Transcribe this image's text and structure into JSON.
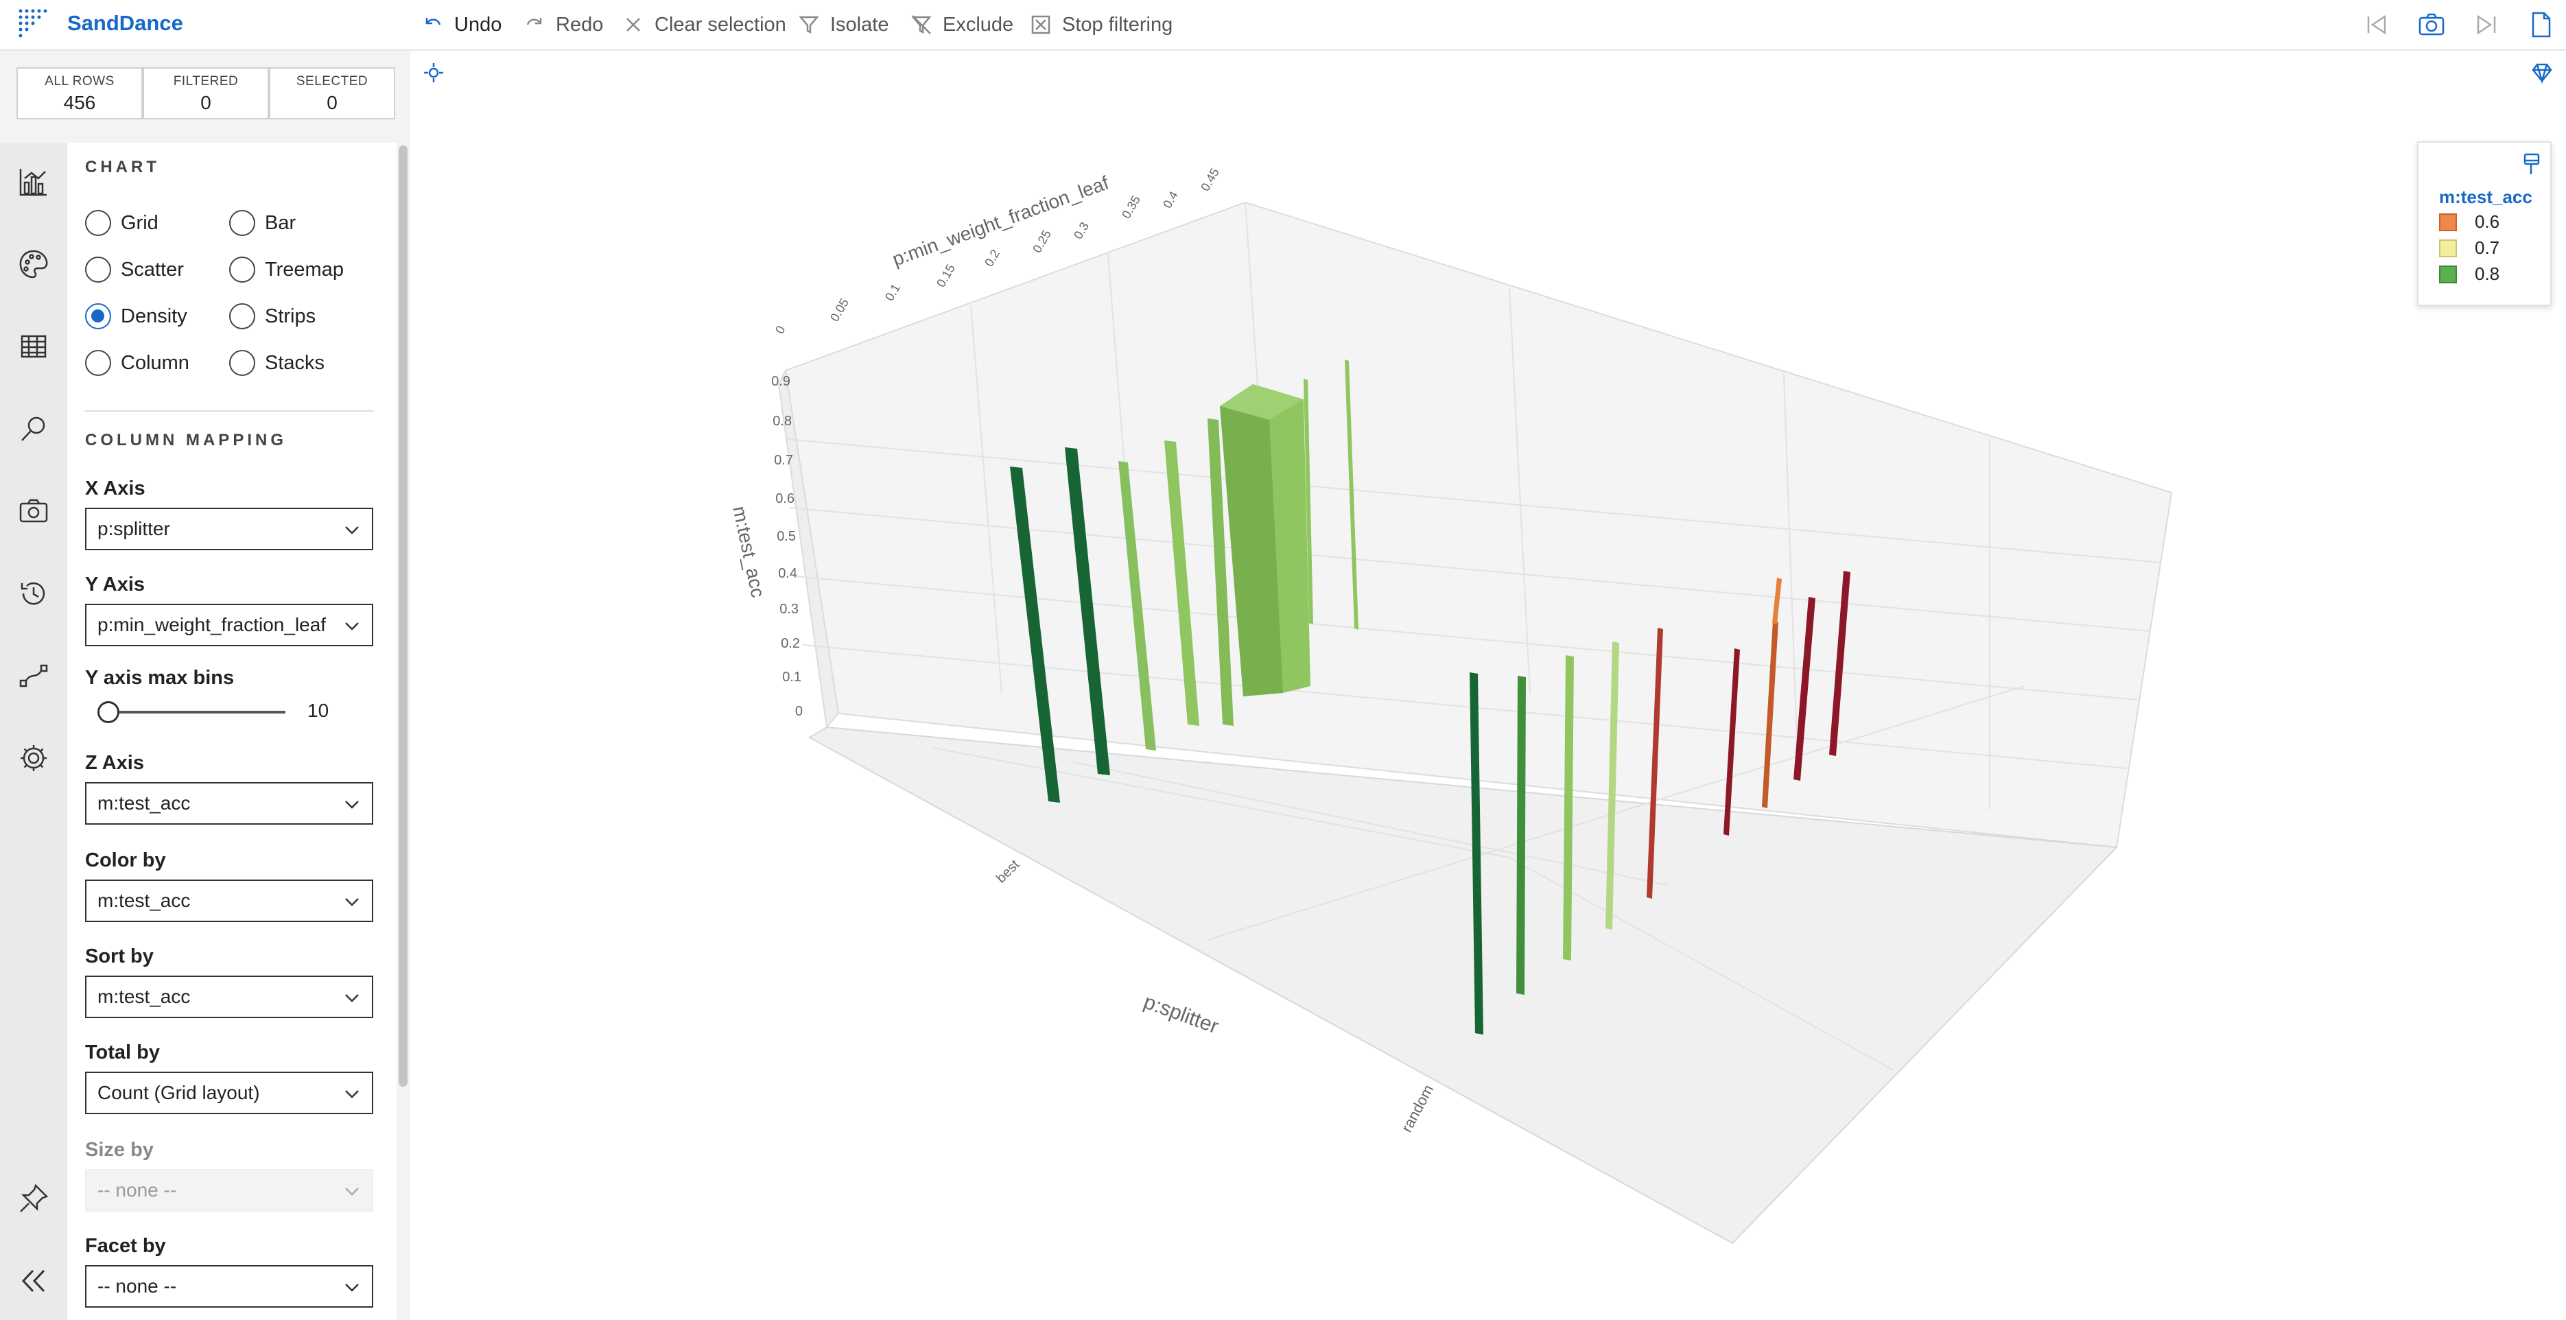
{
  "app": {
    "name": "SandDance"
  },
  "toolbar": {
    "undo": "Undo",
    "redo": "Redo",
    "clear_selection": "Clear selection",
    "isolate": "Isolate",
    "exclude": "Exclude",
    "stop_filtering": "Stop filtering"
  },
  "counts": {
    "all_rows_label": "ALL ROWS",
    "all_rows_value": "456",
    "filtered_label": "FILTERED",
    "filtered_value": "0",
    "selected_label": "SELECTED",
    "selected_value": "0"
  },
  "chart_section": {
    "title": "CHART",
    "types": [
      "Grid",
      "Bar",
      "Scatter",
      "Treemap",
      "Density",
      "Strips",
      "Column",
      "Stacks"
    ],
    "selected": "Density"
  },
  "mapping": {
    "title": "COLUMN MAPPING",
    "x_axis_label": "X Axis",
    "x_axis_value": "p:splitter",
    "y_axis_label": "Y Axis",
    "y_axis_value": "p:min_weight_fraction_leaf",
    "y_bins_label": "Y axis max bins",
    "y_bins_value": "10",
    "z_axis_label": "Z Axis",
    "z_axis_value": "m:test_acc",
    "color_label": "Color by",
    "color_value": "m:test_acc",
    "sort_label": "Sort by",
    "sort_value": "m:test_acc",
    "total_label": "Total by",
    "total_value": "Count (Grid layout)",
    "size_label": "Size by",
    "size_value": "-- none --",
    "facet_label": "Facet by",
    "facet_value": "-- none --"
  },
  "chart_view": {
    "x_axis_title": "p:splitter",
    "y_axis_title": "p:min_weight_fraction_leaf",
    "z_axis_title": "m:test_acc",
    "x_categories": [
      "best",
      "random"
    ],
    "y_ticks": [
      "0",
      "0.05",
      "0.1",
      "0.15",
      "0.2",
      "0.25",
      "0.3",
      "0.35",
      "0.4",
      "0.45"
    ],
    "z_ticks": [
      "0",
      "0.1",
      "0.2",
      "0.3",
      "0.4",
      "0.5",
      "0.6",
      "0.7",
      "0.8",
      "0.9"
    ]
  },
  "legend": {
    "title": "m:test_acc",
    "items": [
      {
        "label": "0.6",
        "color": "#f0874a"
      },
      {
        "label": "0.7",
        "color": "#f2f0a0"
      },
      {
        "label": "0.8",
        "color": "#5cb04f"
      }
    ]
  },
  "colors": {
    "accent": "#1769c9",
    "dark_green": "#1a6b35",
    "light_green": "#8fc660",
    "dark_red": "#8c1726",
    "orange": "#e8803c"
  }
}
